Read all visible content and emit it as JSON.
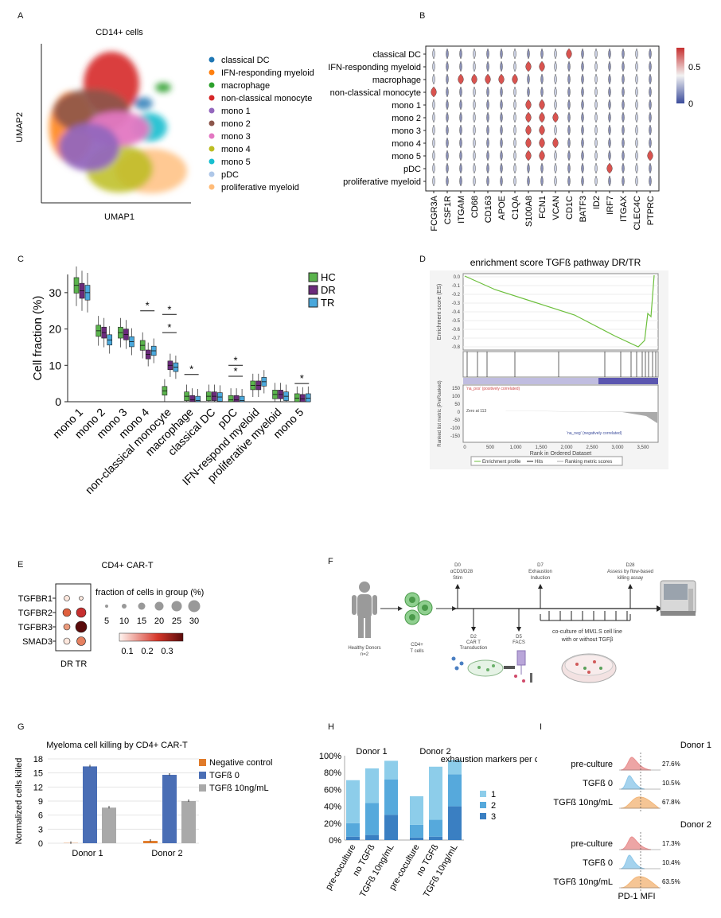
{
  "panel_letters": [
    "A",
    "B",
    "C",
    "D",
    "E",
    "F",
    "G",
    "H",
    "I"
  ],
  "panelA": {
    "title": "CD14+ cells",
    "xlabel": "UMAP1",
    "ylabel": "UMAP2",
    "legend": [
      {
        "name": "classical DC",
        "color": "#1f77b4"
      },
      {
        "name": "IFN-responding myeloid",
        "color": "#ff7f0e"
      },
      {
        "name": "macrophage",
        "color": "#2ca02c"
      },
      {
        "name": "non-classical monocyte",
        "color": "#d62728"
      },
      {
        "name": "mono 1",
        "color": "#9467bd"
      },
      {
        "name": "mono 2",
        "color": "#8c564b"
      },
      {
        "name": "mono 3",
        "color": "#e377c2"
      },
      {
        "name": "mono 4",
        "color": "#bcbd22"
      },
      {
        "name": "mono 5",
        "color": "#17becf"
      },
      {
        "name": "pDC",
        "color": "#aec7e8"
      },
      {
        "name": "proliferative myeloid",
        "color": "#ffbb78"
      }
    ]
  },
  "panelB": {
    "rows": [
      "classical DC",
      "IFN-responding myeloid",
      "macrophage",
      "non-classical monocyte",
      "mono 1",
      "mono 2",
      "mono 3",
      "mono 4",
      "mono 5",
      "pDC",
      "proliferative myeloid"
    ],
    "genes": [
      "FCGR3A",
      "CSF1R",
      "ITGAM",
      "CD68",
      "CD163",
      "APOE",
      "C1QA",
      "S100A8",
      "FCN1",
      "VCAN",
      "CD1C",
      "BATF3",
      "ID2",
      "IRF7",
      "ITGAX",
      "CLEC4C",
      "PTPRC"
    ],
    "colorbar_ticks": [
      "0.5",
      "0"
    ]
  },
  "panelC": {
    "chart_data": {
      "type": "box",
      "ylabel": "Cell fraction (%)",
      "ylim": [
        0,
        35
      ],
      "yticks": [
        "0",
        "10",
        "20",
        "30"
      ],
      "categories": [
        "mono 1",
        "mono 2",
        "mono 3",
        "mono 4",
        "non-classical monocyte",
        "macrophage",
        "classical DC",
        "pDC",
        "IFN-respond myeloid",
        "proliferative myeloid",
        "mono 5"
      ],
      "series": [
        {
          "name": "HC",
          "color": "#5ab34c",
          "medians": [
            32,
            19.5,
            19,
            15.5,
            3,
            1.5,
            1.5,
            0.5,
            4.5,
            2,
            1
          ]
        },
        {
          "name": "DR",
          "color": "#6b2a7c",
          "medians": [
            30.5,
            19,
            18.5,
            13,
            10,
            0.5,
            1.5,
            0.5,
            4.5,
            2,
            0.8
          ]
        },
        {
          "name": "TR",
          "color": "#4aa8dc",
          "medians": [
            30,
            17,
            16.5,
            14,
            9.5,
            0.3,
            1.3,
            0.3,
            5.5,
            1.5,
            1
          ]
        }
      ],
      "significance_marker": "*"
    }
  },
  "panelD": {
    "title": "enrichment score TGFß pathway DR/TR",
    "es_ylabel": "Enrichment score (ES)",
    "es_ticks": [
      "0.0",
      "-0.1",
      "-0.2",
      "-0.3",
      "-0.4",
      "-0.5",
      "-0.6",
      "-0.7",
      "-0.8"
    ],
    "rank_ylabel": "Ranked list metric (PreRanked)",
    "rank_ticks": [
      "150",
      "100",
      "50",
      "0",
      "-50",
      "-100",
      "-150"
    ],
    "x_ticks": [
      "0",
      "500",
      "1,000",
      "1,500",
      "2,000",
      "2,500",
      "3,000",
      "3,500"
    ],
    "xlabel": "Rank in Ordered Dataset",
    "pos_label": "'na_pos' (positively correlated)",
    "neg_label": "'na_neg' (negatively correlated)",
    "zero_label": "Zero at 113",
    "legend": [
      "Enrichment profile",
      "Hits",
      "Ranking metric scores"
    ]
  },
  "panelE": {
    "title": "CD4+ CAR-T",
    "genes": [
      "TGFBR1",
      "TGFBR2",
      "TGFBR3",
      "SMAD3"
    ],
    "groups": [
      "DR",
      "TR"
    ],
    "size_title": "fraction of cells in group (%)",
    "size_ticks": [
      "5",
      "10",
      "15",
      "20",
      "25",
      "30"
    ],
    "color_ticks": [
      "0.1",
      "0.2",
      "0.3"
    ]
  },
  "panelF": {
    "d0": [
      "D0",
      "αCD3/D28",
      "Stim"
    ],
    "d7": [
      "D7",
      "Exhaustion",
      "Induction"
    ],
    "d28": [
      "D28",
      "Assess by flow-based",
      "killing assay"
    ],
    "d2": [
      "D2",
      "CAR T",
      "Transduction"
    ],
    "d5": [
      "D5",
      "FACS"
    ],
    "donors": [
      "Healthy Donors",
      "n=2"
    ],
    "cd4": [
      "CD4+",
      "T cells"
    ],
    "coculture": [
      "co-culture of MM1.S cell line",
      "with or without TGFβ"
    ]
  },
  "panelG": {
    "chart_data": {
      "type": "bar",
      "title": "Myeloma cell killing by CD4+ CAR-T",
      "ylabel": "Normalized cells killed",
      "ylim": [
        0,
        18
      ],
      "yticks": [
        "0",
        "3",
        "6",
        "9",
        "12",
        "15",
        "18"
      ],
      "categories": [
        "Donor 1",
        "Donor 2"
      ],
      "series": [
        {
          "name": "Negative control",
          "color": "#e07b2a",
          "values": [
            0.05,
            0.5
          ]
        },
        {
          "name": "TGFß 0",
          "color": "#4a6eb5",
          "values": [
            16.4,
            14.6
          ]
        },
        {
          "name": "TGFß 10ng/mL",
          "color": "#a9a9a9",
          "values": [
            7.6,
            9.0
          ]
        }
      ]
    }
  },
  "panelH": {
    "chart_data": {
      "type": "bar",
      "stacked": true,
      "yticks": [
        "0%",
        "20%",
        "40%",
        "60%",
        "80%",
        "100%"
      ],
      "ylim": [
        0,
        100
      ],
      "groups": [
        "Donor 1",
        "Donor 2"
      ],
      "categories": [
        "pre-coculture",
        "no TGFß",
        "TGFß 10ng/mL",
        "pre-coculture",
        "no TGFß",
        "TGFß 10ng/mL"
      ],
      "legend_title": "exhaustion markers per cell",
      "series": [
        {
          "name": "3",
          "color": "#3a7fc2",
          "values": [
            4,
            6,
            30,
            3,
            4,
            40
          ]
        },
        {
          "name": "2",
          "color": "#56a9dc",
          "values": [
            16,
            38,
            42,
            15,
            20,
            38
          ]
        },
        {
          "name": "1",
          "color": "#8dcdea",
          "values": [
            51,
            41,
            22,
            34,
            63,
            17
          ]
        }
      ]
    }
  },
  "panelI": {
    "donor1": "Donor 1",
    "donor2": "Donor 2",
    "rows1": [
      {
        "label": "pre-culture",
        "pct": "27.6%",
        "color": "#e98f8f"
      },
      {
        "label": "TGFß 0",
        "pct": "10.5%",
        "color": "#8fc8ea"
      },
      {
        "label": "TGFß 10ng/mL",
        "pct": "67.8%",
        "color": "#f3b77a"
      }
    ],
    "rows2": [
      {
        "label": "pre-culture",
        "pct": "17.3%",
        "color": "#e98f8f"
      },
      {
        "label": "TGFß 0",
        "pct": "10.4%",
        "color": "#8fc8ea"
      },
      {
        "label": "TGFß 10ng/mL",
        "pct": "63.5%",
        "color": "#f3b77a"
      }
    ],
    "xlabel": "PD-1 MFI"
  }
}
